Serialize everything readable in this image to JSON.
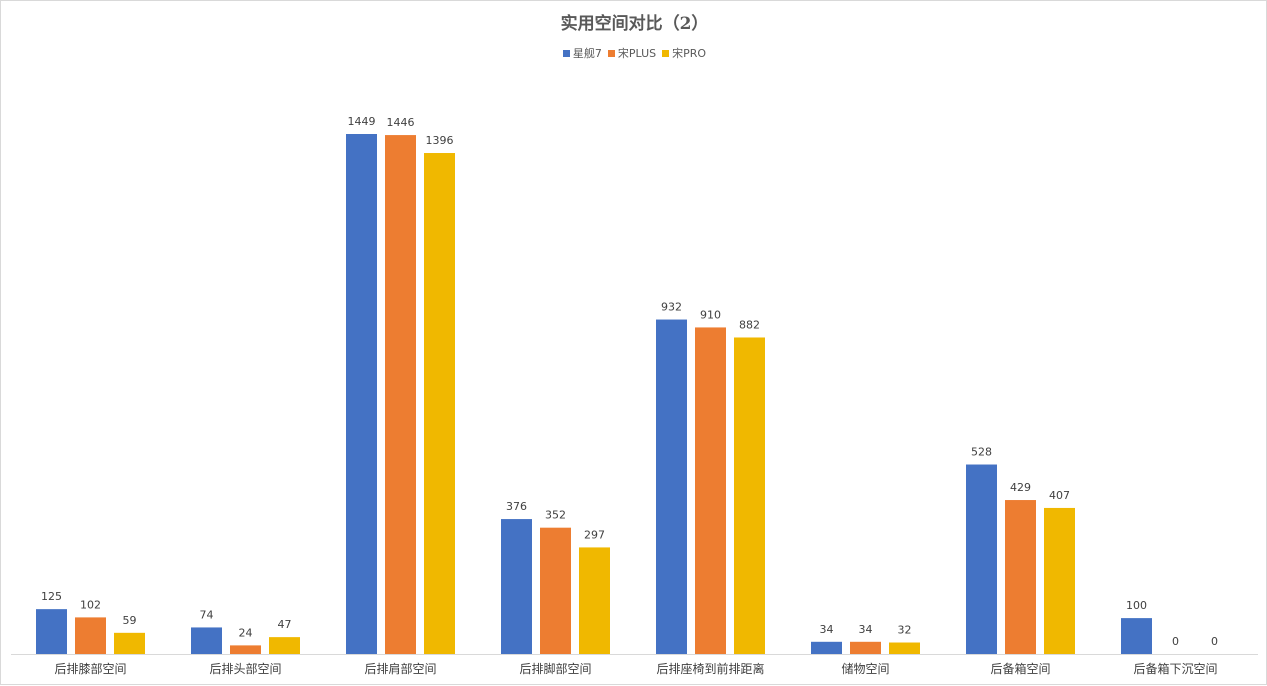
{
  "chart_data": {
    "type": "bar",
    "title": "实用空间对比（2）",
    "categories": [
      "后排膝部空间",
      "后排头部空间",
      "后排肩部空间",
      "后排脚部空间",
      "后排座椅到前排距离",
      "储物空间",
      "后备箱空间",
      "后备箱下沉空间"
    ],
    "series": [
      {
        "name": "星舰7",
        "color": "#4472C4",
        "values": [
          125,
          74,
          1449,
          376,
          932,
          34,
          528,
          100
        ]
      },
      {
        "name": "宋PLUS",
        "color": "#ED7D31",
        "values": [
          102,
          24,
          1446,
          352,
          910,
          34,
          429,
          0
        ]
      },
      {
        "name": "宋PRO",
        "color": "#F0B800",
        "values": [
          59,
          47,
          1396,
          297,
          882,
          32,
          407,
          0
        ]
      }
    ],
    "xlabel": "",
    "ylabel": "",
    "ylim": [
      0,
      1449
    ],
    "grid": false,
    "legend": "top-center",
    "data_labels": true
  }
}
